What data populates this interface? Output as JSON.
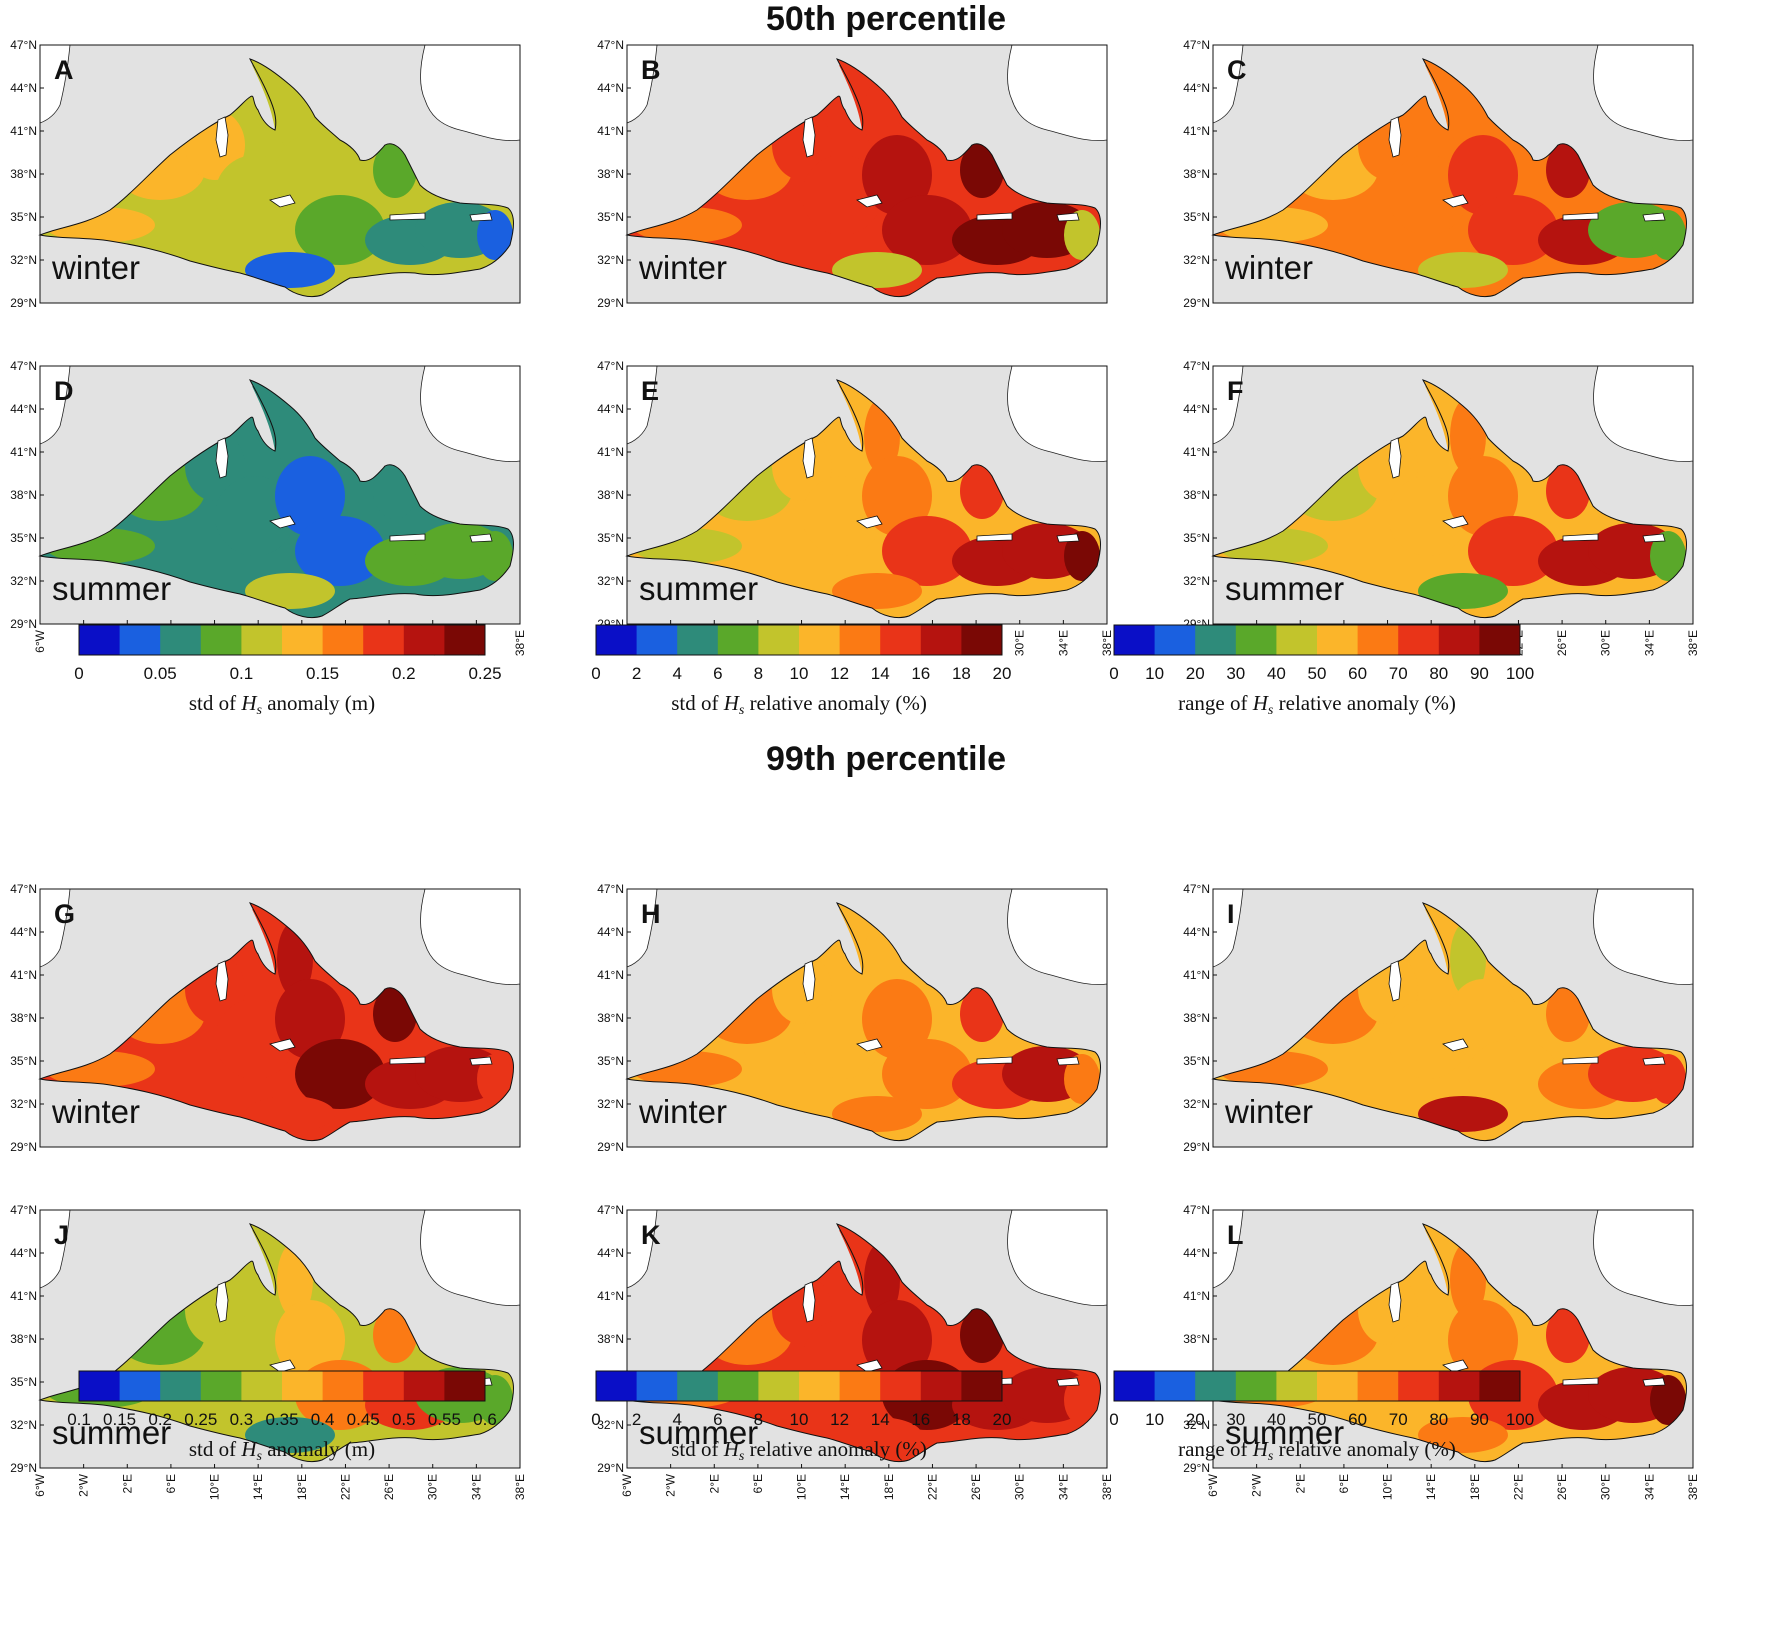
{
  "figure": {
    "sections": [
      {
        "title": "50th percentile"
      },
      {
        "title": "99th percentile"
      }
    ],
    "lat_ticks": [
      "47°N",
      "44°N",
      "41°N",
      "38°N",
      "35°N",
      "32°N",
      "29°N"
    ],
    "lon_ticks": [
      "6°W",
      "2°W",
      "2°E",
      "6°E",
      "10°E",
      "14°E",
      "18°E",
      "22°E",
      "26°E",
      "30°E",
      "34°E",
      "38°E"
    ],
    "panels": [
      {
        "letter": "A",
        "season": "winter",
        "colormap": "m0",
        "palette": [
          5,
          5,
          5,
          4,
          4,
          4,
          3,
          3,
          2,
          2,
          1,
          1
        ]
      },
      {
        "letter": "B",
        "season": "winter",
        "colormap": "rel",
        "palette": [
          6,
          6,
          7,
          7,
          7,
          8,
          8,
          9,
          9,
          9,
          4,
          4
        ]
      },
      {
        "letter": "C",
        "season": "winter",
        "colormap": "range",
        "palette": [
          5,
          5,
          6,
          6,
          6,
          7,
          7,
          8,
          8,
          3,
          3,
          4
        ]
      },
      {
        "letter": "D",
        "season": "summer",
        "colormap": "m0",
        "palette": [
          3,
          3,
          2,
          2,
          2,
          1,
          1,
          2,
          3,
          3,
          3,
          4
        ]
      },
      {
        "letter": "E",
        "season": "summer",
        "colormap": "rel",
        "palette": [
          4,
          4,
          5,
          5,
          6,
          6,
          7,
          7,
          8,
          8,
          9,
          6
        ]
      },
      {
        "letter": "F",
        "season": "summer",
        "colormap": "range",
        "palette": [
          4,
          4,
          5,
          5,
          6,
          6,
          7,
          7,
          8,
          8,
          3,
          3
        ]
      },
      {
        "letter": "G",
        "season": "winter",
        "colormap": "m1",
        "palette": [
          6,
          6,
          7,
          7,
          8,
          8,
          9,
          9,
          8,
          8,
          7,
          7
        ]
      },
      {
        "letter": "H",
        "season": "winter",
        "colormap": "rel",
        "palette": [
          6,
          6,
          5,
          5,
          5,
          6,
          6,
          7,
          7,
          8,
          6,
          6
        ]
      },
      {
        "letter": "I",
        "season": "winter",
        "colormap": "range",
        "palette": [
          6,
          6,
          5,
          5,
          4,
          5,
          5,
          6,
          6,
          7,
          7,
          8
        ]
      },
      {
        "letter": "J",
        "season": "summer",
        "colormap": "m1",
        "palette": [
          3,
          3,
          4,
          4,
          5,
          5,
          6,
          6,
          7,
          3,
          3,
          2
        ]
      },
      {
        "letter": "K",
        "season": "summer",
        "colormap": "rel",
        "palette": [
          6,
          6,
          7,
          7,
          8,
          8,
          9,
          9,
          8,
          8,
          7,
          7
        ]
      },
      {
        "letter": "L",
        "season": "summer",
        "colormap": "range",
        "palette": [
          6,
          6,
          5,
          5,
          6,
          6,
          7,
          7,
          8,
          8,
          9,
          6
        ]
      }
    ],
    "colormap_colors": [
      "#0a0fc7",
      "#1a60e0",
      "#2e8b7a",
      "#5aa82a",
      "#c2c42c",
      "#fbb52a",
      "#fb7a14",
      "#e93418",
      "#b5130f",
      "#7a0805"
    ],
    "land_color": "#e2e2e2",
    "colorbars": [
      {
        "id": "cb1",
        "label": "std of H_s anomaly (m)",
        "label_pre": "std of ",
        "label_var": "H",
        "label_sub": "s",
        "label_post": " anomaly (m)",
        "ticks": [
          "0",
          "0.05",
          "0.1",
          "0.15",
          "0.2",
          "0.25"
        ],
        "tick_every": 2
      },
      {
        "id": "cb2",
        "label_pre": "std of ",
        "label_var": "H",
        "label_sub": "s",
        "label_post": " relative anomaly (%)",
        "ticks": [
          "0",
          "2",
          "4",
          "6",
          "8",
          "10",
          "12",
          "14",
          "16",
          "18",
          "20"
        ],
        "tick_every": 1
      },
      {
        "id": "cb3",
        "label_pre": "range of ",
        "label_var": "H",
        "label_sub": "s",
        "label_post": " relative anomaly (%)",
        "ticks": [
          "0",
          "10",
          "20",
          "30",
          "40",
          "50",
          "60",
          "70",
          "80",
          "90",
          "100"
        ],
        "tick_every": 1
      },
      {
        "id": "cb4",
        "label_pre": "std of ",
        "label_var": "H",
        "label_sub": "s",
        "label_post": " anomaly (m)",
        "ticks": [
          "0.1",
          "0.15",
          "0.2",
          "0.25",
          "0.3",
          "0.35",
          "0.4",
          "0.45",
          "0.5",
          "0.55",
          "0.6"
        ],
        "tick_every": 1
      },
      {
        "id": "cb5",
        "label_pre": "std of ",
        "label_var": "H",
        "label_sub": "s",
        "label_post": " relative anomaly (%)",
        "ticks": [
          "0",
          "2",
          "4",
          "6",
          "8",
          "10",
          "12",
          "14",
          "16",
          "18",
          "20"
        ],
        "tick_every": 1
      },
      {
        "id": "cb6",
        "label_pre": "range of ",
        "label_var": "H",
        "label_sub": "s",
        "label_post": " relative anomaly (%)",
        "ticks": [
          "0",
          "10",
          "20",
          "30",
          "40",
          "50",
          "60",
          "70",
          "80",
          "90",
          "100"
        ],
        "tick_every": 1
      }
    ]
  }
}
